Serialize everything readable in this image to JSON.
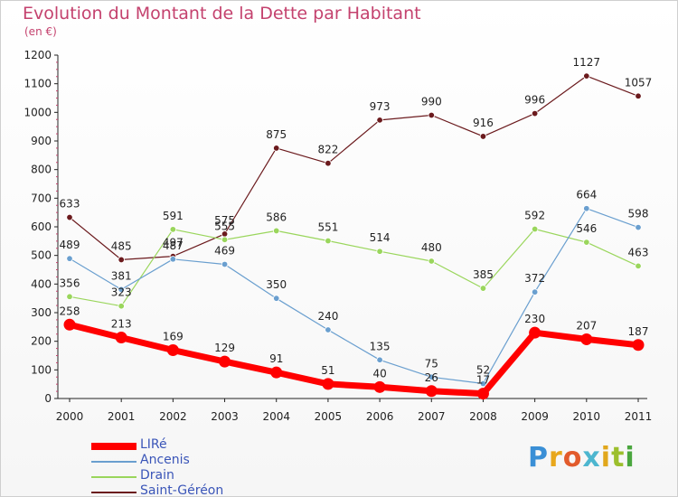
{
  "title": "Evolution du Montant de la Dette par Habitant",
  "unit": "(en €)",
  "brand": "Proxiti",
  "brand_letters": [
    {
      "ch": "P",
      "color": "#3a8fd6"
    },
    {
      "ch": "r",
      "color": "#e8a71b"
    },
    {
      "ch": "o",
      "color": "#e25b2c"
    },
    {
      "ch": "x",
      "color": "#4db6cf"
    },
    {
      "ch": "i",
      "color": "#e1a71c"
    },
    {
      "ch": "t",
      "color": "#9cbf2d"
    },
    {
      "ch": "i",
      "color": "#4aa63e"
    }
  ],
  "chart_data": {
    "type": "line",
    "x": [
      "2000",
      "2001",
      "2002",
      "2003",
      "2004",
      "2005",
      "2006",
      "2007",
      "2008",
      "2009",
      "2010",
      "2011"
    ],
    "ylim": [
      0,
      1200
    ],
    "yticks": [
      0,
      100,
      200,
      300,
      400,
      500,
      600,
      700,
      800,
      900,
      1000,
      1100,
      1200
    ],
    "grid": false,
    "legend_position": "bottom-left",
    "series": [
      {
        "name": "Saint-Géréon",
        "color": "#6b1a1d",
        "width": 1.2,
        "values": [
          633,
          485,
          497,
          575,
          875,
          822,
          973,
          990,
          916,
          996,
          1127,
          1057
        ]
      },
      {
        "name": "Drain",
        "color": "#9ad65c",
        "width": 1.2,
        "values": [
          356,
          323,
          591,
          555,
          586,
          551,
          514,
          480,
          385,
          592,
          546,
          463
        ]
      },
      {
        "name": "Ancenis",
        "color": "#6a9fcf",
        "width": 1.2,
        "values": [
          489,
          381,
          487,
          469,
          350,
          240,
          135,
          75,
          52,
          372,
          664,
          598
        ]
      },
      {
        "name": "LIRé",
        "color": "#ff0000",
        "width": 7,
        "values": [
          258,
          213,
          169,
          129,
          91,
          51,
          40,
          26,
          17,
          230,
          207,
          187
        ]
      }
    ]
  }
}
